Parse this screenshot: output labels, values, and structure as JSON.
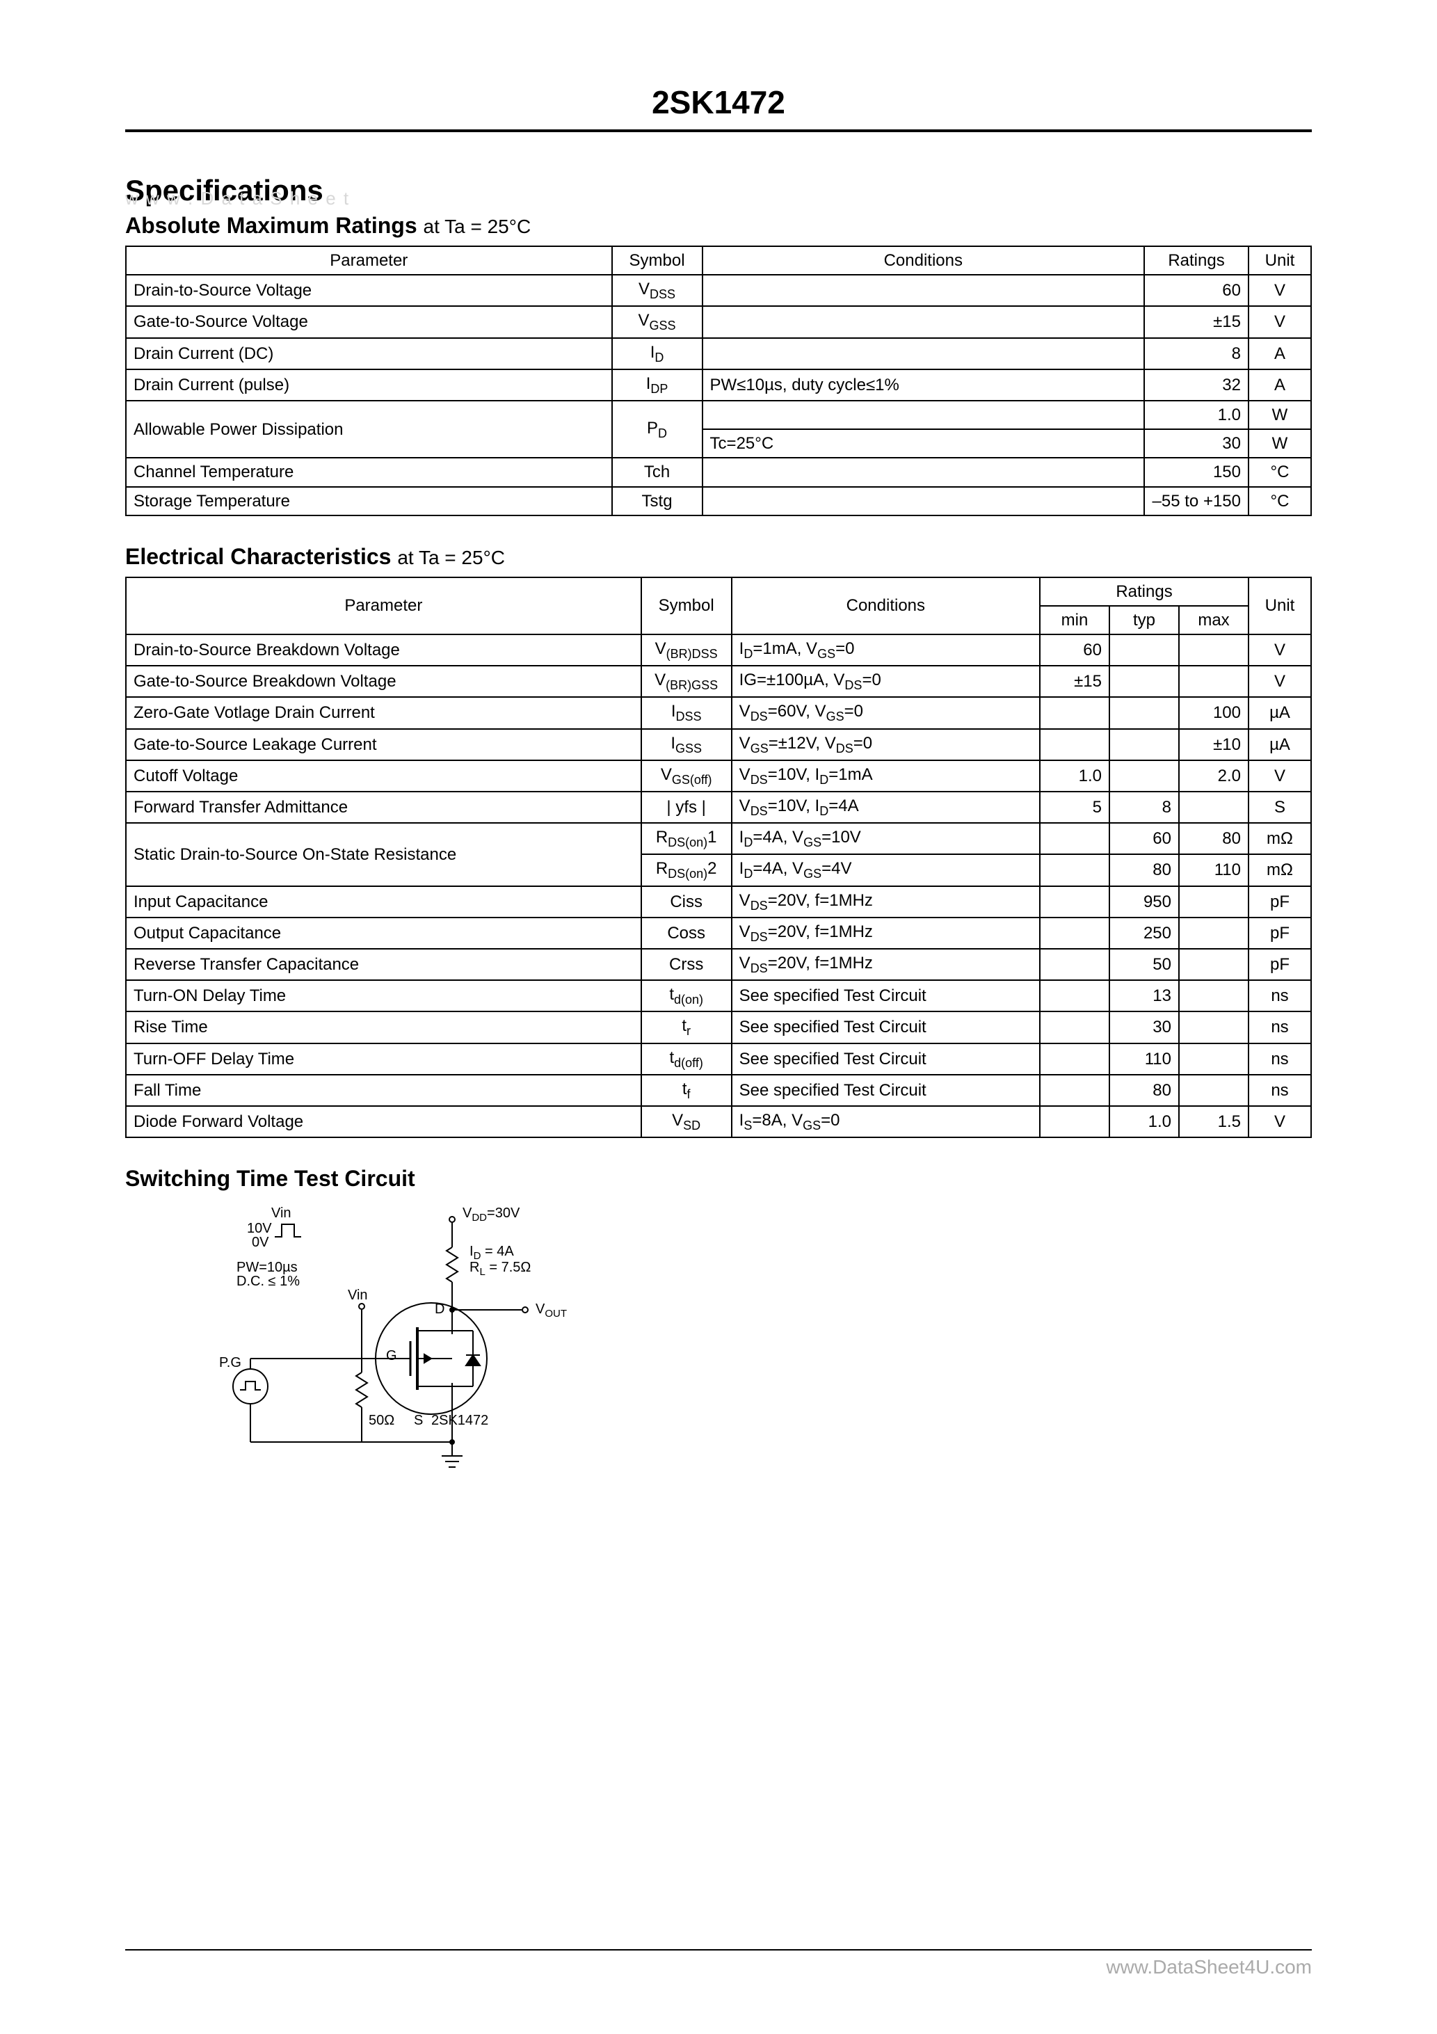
{
  "header": {
    "part_number": "2SK1472"
  },
  "watermark": "w w w . D a t a S h e e t",
  "section1_title": "Specifications",
  "abs_max": {
    "title": "Absolute Maximum Ratings",
    "cond_suffix": "at Ta = 25°C",
    "headers": {
      "param": "Parameter",
      "symbol": "Symbol",
      "conditions": "Conditions",
      "ratings": "Ratings",
      "unit": "Unit"
    },
    "rows": [
      {
        "param": "Drain-to-Source Voltage",
        "symbol": "V<sub>DSS</sub>",
        "cond": "",
        "rating": "60",
        "unit": "V"
      },
      {
        "param": "Gate-to-Source Voltage",
        "symbol": "V<sub>GSS</sub>",
        "cond": "",
        "rating": "±15",
        "unit": "V"
      },
      {
        "param": "Drain Current (DC)",
        "symbol": "I<sub>D</sub>",
        "cond": "",
        "rating": "8",
        "unit": "A"
      },
      {
        "param": "Drain Current (pulse)",
        "symbol": "I<sub>DP</sub>",
        "cond": "PW≤10µs, duty cycle≤1%",
        "rating": "32",
        "unit": "A"
      },
      {
        "param": "Allowable Power Dissipation",
        "symbol": "P<sub>D</sub>",
        "rowspan": 2,
        "cond": "",
        "rating": "1.0",
        "unit": "W"
      },
      {
        "param": null,
        "symbol": null,
        "cond": "Tc=25°C",
        "rating": "30",
        "unit": "W"
      },
      {
        "param": "Channel Temperature",
        "symbol": "Tch",
        "cond": "",
        "rating": "150",
        "unit": "°C"
      },
      {
        "param": "Storage Temperature",
        "symbol": "Tstg",
        "cond": "",
        "rating": "–55 to +150",
        "unit": "°C"
      }
    ]
  },
  "elec": {
    "title": "Electrical Characteristics",
    "cond_suffix": "at Ta = 25°C",
    "headers": {
      "param": "Parameter",
      "symbol": "Symbol",
      "conditions": "Conditions",
      "ratings": "Ratings",
      "min": "min",
      "typ": "typ",
      "max": "max",
      "unit": "Unit"
    },
    "rows": [
      {
        "param": "Drain-to-Source Breakdown Voltage",
        "symbol": "V<sub>(BR)DSS</sub>",
        "cond": "I<sub>D</sub>=1mA, V<sub>GS</sub>=0",
        "min": "60",
        "typ": "",
        "max": "",
        "unit": "V"
      },
      {
        "param": "Gate-to-Source Breakdown Voltage",
        "symbol": "V<sub>(BR)GSS</sub>",
        "cond": "IG=±100µA, V<sub>DS</sub>=0",
        "min": "±15",
        "typ": "",
        "max": "",
        "unit": "V"
      },
      {
        "param": "Zero-Gate Votlage Drain Current",
        "symbol": "I<sub>DSS</sub>",
        "cond": "V<sub>DS</sub>=60V, V<sub>GS</sub>=0",
        "min": "",
        "typ": "",
        "max": "100",
        "unit": "µA"
      },
      {
        "param": "Gate-to-Source Leakage Current",
        "symbol": "I<sub>GSS</sub>",
        "cond": "V<sub>GS</sub>=±12V, V<sub>DS</sub>=0",
        "min": "",
        "typ": "",
        "max": "±10",
        "unit": "µA"
      },
      {
        "param": "Cutoff Voltage",
        "symbol": "V<sub>GS(off)</sub>",
        "cond": "V<sub>DS</sub>=10V, I<sub>D</sub>=1mA",
        "min": "1.0",
        "typ": "",
        "max": "2.0",
        "unit": "V"
      },
      {
        "param": "Forward Transfer Admittance",
        "symbol": "| yfs |",
        "cond": "V<sub>DS</sub>=10V, I<sub>D</sub>=4A",
        "min": "5",
        "typ": "8",
        "max": "",
        "unit": "S"
      },
      {
        "param": "Static Drain-to-Source On-State Resistance",
        "rowspan": 2,
        "symbol": "R<sub>DS(on)</sub>1",
        "cond": "I<sub>D</sub>=4A, V<sub>GS</sub>=10V",
        "min": "",
        "typ": "60",
        "max": "80",
        "unit": "mΩ"
      },
      {
        "param": null,
        "symbol": "R<sub>DS(on)</sub>2",
        "cond": "I<sub>D</sub>=4A, V<sub>GS</sub>=4V",
        "min": "",
        "typ": "80",
        "max": "110",
        "unit": "mΩ"
      },
      {
        "param": "Input Capacitance",
        "symbol": "Ciss",
        "cond": "V<sub>DS</sub>=20V, f=1MHz",
        "min": "",
        "typ": "950",
        "max": "",
        "unit": "pF"
      },
      {
        "param": "Output Capacitance",
        "symbol": "Coss",
        "cond": "V<sub>DS</sub>=20V, f=1MHz",
        "min": "",
        "typ": "250",
        "max": "",
        "unit": "pF"
      },
      {
        "param": "Reverse Transfer Capacitance",
        "symbol": "Crss",
        "cond": "V<sub>DS</sub>=20V, f=1MHz",
        "min": "",
        "typ": "50",
        "max": "",
        "unit": "pF"
      },
      {
        "param": "Turn-ON Delay Time",
        "symbol": "t<sub>d(on)</sub>",
        "cond": "See specified Test Circuit",
        "min": "",
        "typ": "13",
        "max": "",
        "unit": "ns"
      },
      {
        "param": "Rise Time",
        "symbol": "t<sub>r</sub>",
        "cond": "See specified Test Circuit",
        "min": "",
        "typ": "30",
        "max": "",
        "unit": "ns"
      },
      {
        "param": "Turn-OFF Delay Time",
        "symbol": "t<sub>d(off)</sub>",
        "cond": "See specified Test Circuit",
        "min": "",
        "typ": "110",
        "max": "",
        "unit": "ns"
      },
      {
        "param": "Fall Time",
        "symbol": "t<sub>f</sub>",
        "cond": "See specified Test Circuit",
        "min": "",
        "typ": "80",
        "max": "",
        "unit": "ns"
      },
      {
        "param": "Diode Forward Voltage",
        "symbol": "V<sub>SD</sub>",
        "cond": "I<sub>S</sub>=8A, V<sub>GS</sub>=0",
        "min": "",
        "typ": "1.0",
        "max": "1.5",
        "unit": "V"
      }
    ]
  },
  "circuit": {
    "title": "Switching Time Test Circuit",
    "labels": {
      "vdd": "V<sub>DD</sub>=30V",
      "vin_top": "Vin",
      "vin_10v": "10V",
      "vin_0v": "0V",
      "pw": "PW=10µs",
      "dc": "D.C. ≤ 1%",
      "vin2": "Vin",
      "id": "I<sub>D</sub> = 4A",
      "rl": "R<sub>L</sub> = 7.5Ω",
      "vout": "V<sub>OUT</sub>",
      "pg": "P.G",
      "r50": "50Ω",
      "d": "D",
      "g": "G",
      "s": "S",
      "part": "2SK1472"
    }
  },
  "footer": "www.DataSheet4U.com"
}
